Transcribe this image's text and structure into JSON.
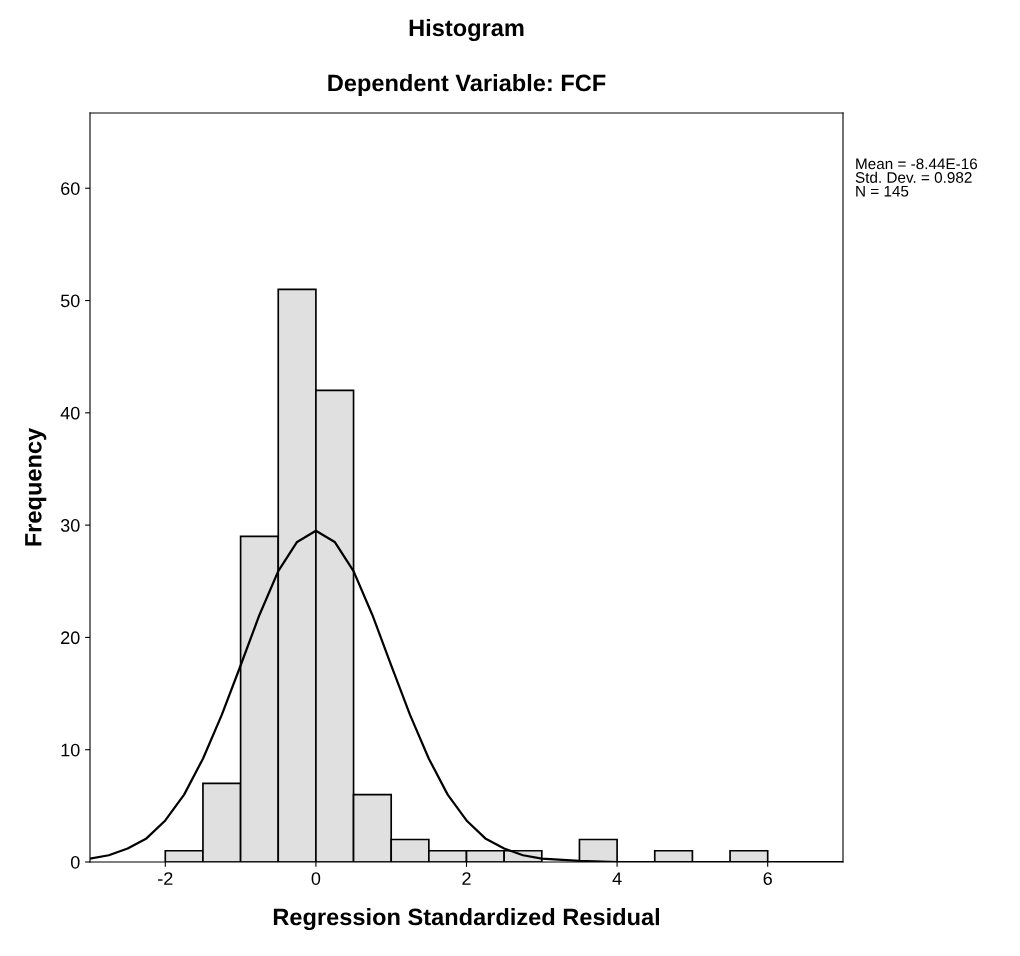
{
  "chart_data": {
    "type": "histogram",
    "title": "Histogram",
    "subtitle": "Dependent Variable: FCF",
    "xlabel": "Regression Standardized Residual",
    "ylabel": "Frequency",
    "series": [
      {
        "color": "#e0e0e0",
        "bins": [
          -2,
          -1.5,
          -1,
          -0.5,
          0,
          0.5,
          1,
          1.5,
          2,
          2.5,
          3,
          3.5,
          4,
          4.5,
          5,
          5.5,
          6
        ],
        "values": [
          1,
          7,
          29,
          51,
          42,
          6,
          2,
          1,
          1,
          1,
          0,
          2,
          0,
          1,
          0,
          1
        ]
      },
      {
        "type": "line",
        "color": "#000000",
        "x": [
          -3,
          -2.75,
          -2.5,
          -2.25,
          -2,
          -1.75,
          -1.5,
          -1.25,
          -1,
          -0.75,
          -0.5,
          -0.25,
          0,
          0.25,
          0.5,
          0.75,
          1,
          1.25,
          1.5,
          1.75,
          2,
          2.25,
          2.5,
          2.75,
          3,
          3.5,
          4,
          7
        ],
        "values": [
          0.3,
          0.6,
          1.2,
          2.1,
          3.7,
          6,
          9.2,
          13.1,
          17.5,
          22,
          25.9,
          28.5,
          29.5,
          28.5,
          25.9,
          22,
          17.5,
          13.1,
          9.2,
          6,
          3.7,
          2.1,
          1.2,
          0.6,
          0.3,
          0.1,
          0,
          0
        ]
      }
    ],
    "xlim": [
      -3,
      7
    ],
    "ylim": [
      0,
      66.7
    ],
    "xticks": [
      -2,
      0,
      2,
      4,
      6
    ],
    "yticks": [
      0,
      10,
      20,
      30,
      40,
      50,
      60
    ],
    "grid": false,
    "legend": false,
    "annotations": [
      "Mean = -8.44E-16\nStd. Dev. = 0.982\nN = 145"
    ]
  }
}
